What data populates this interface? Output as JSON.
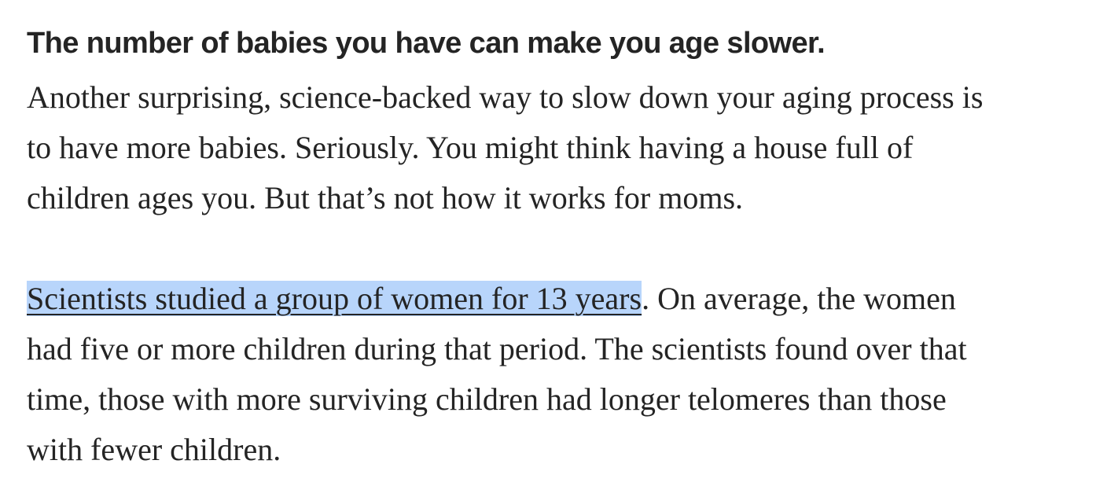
{
  "article": {
    "heading": "The number of babies you have can make you age slower.",
    "paragraph_1": {
      "lines": [
        "Another surprising, science-backed way to slow down your aging process is",
        "to have more babies. Seriously. You might think having a house full of",
        "children ages you. But that’s not how it works for moms."
      ]
    },
    "paragraph_2": {
      "link_text": "Scientists studied a group of women for 13 years",
      "after_link": ". On average, the women",
      "lines": [
        "had five or more children during that period. The scientists found over that",
        "time, those with more surviving children had longer telomeres than those",
        "with fewer children."
      ]
    },
    "colors": {
      "text": "#242424",
      "link_highlight": "#b8d5fb"
    }
  }
}
